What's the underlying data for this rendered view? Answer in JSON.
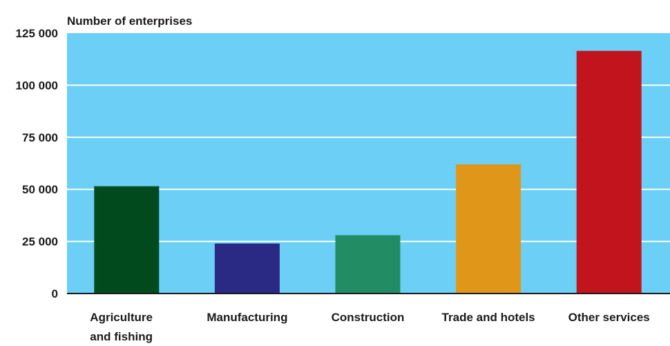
{
  "chart_data": {
    "type": "bar",
    "title": "",
    "ylabel": "Number of enterprises",
    "xlabel": "",
    "categories": [
      [
        "Agriculture",
        "and fishing"
      ],
      [
        "Manufacturing"
      ],
      [
        "Construction"
      ],
      [
        "Trade and hotels"
      ],
      [
        "Other services"
      ]
    ],
    "values": [
      51500,
      24000,
      28000,
      62000,
      116500
    ],
    "colors": [
      "#004a1e",
      "#2a2a85",
      "#228c64",
      "#e09719",
      "#c1141c"
    ],
    "ylim": [
      0,
      125000
    ],
    "yticks": [
      0,
      25000,
      50000,
      75000,
      100000,
      125000
    ],
    "ytick_labels": [
      "0",
      "25 000",
      "50 000",
      "75 000",
      "100 000",
      "125 000"
    ],
    "grid": true,
    "plot_background": "#6bcff6",
    "grid_color": "#ffffff"
  }
}
